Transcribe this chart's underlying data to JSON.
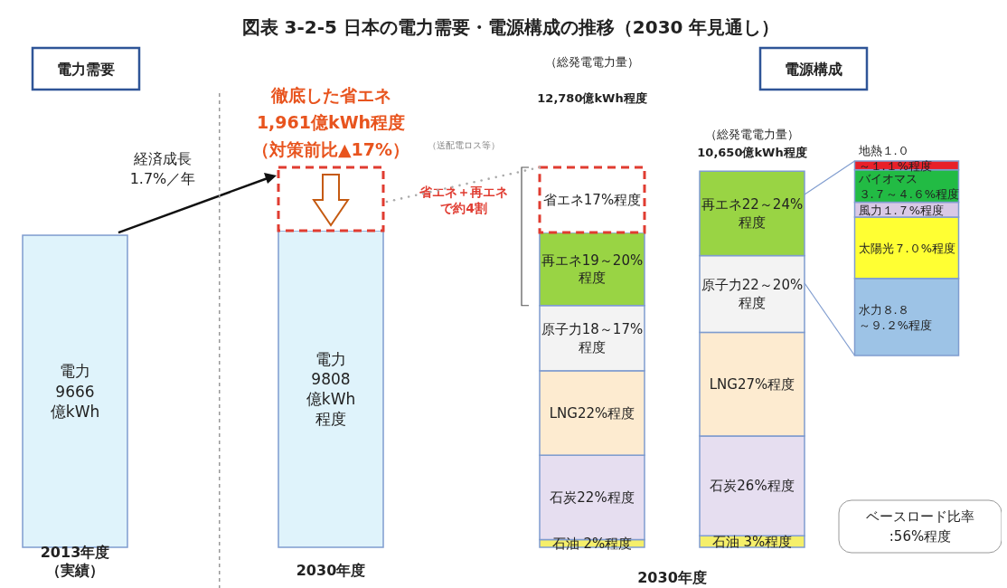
{
  "chart_data": [
    {
      "type": "bar",
      "stacked": true,
      "title": "図表 3-2-5 日本の電力需要・電源構成の推移（2030 年見通し）",
      "categories": [
        "2013年度（実績）",
        "2030年度"
      ],
      "series": [
        {
          "color": "#dff3fb",
          "values": [
            9666,
            9808
          ],
          "value_labels": [
            "電力\n9666\n億kWh",
            "電力\n9808\n億kWh\n程度"
          ]
        },
        {
          "color": "#ffffff",
          "line_style": "dashed",
          "values": [
            null,
            1961
          ],
          "value_labels": [
            null,
            "徹底した省エネ1,961億kWh程度（対策前比▲17%）"
          ]
        }
      ],
      "annotations": [
        "電力需要",
        "経済成長\n1.7%／年"
      ]
    },
    {
      "type": "bar",
      "stacked": true,
      "categories": [
        null,
        null
      ],
      "xlabel": "2030年度",
      "series": [
        {
          "color": "#f5ef6a",
          "values": [
            2,
            3
          ],
          "value_labels": [
            "石油 2%程度",
            "石油 3%程度"
          ]
        },
        {
          "color": "#e6def0",
          "values": [
            22,
            26
          ],
          "value_labels": [
            "石炭22%程度",
            "石炭26%程度"
          ]
        },
        {
          "color": "#fdebd0",
          "values": [
            22,
            27
          ],
          "value_labels": [
            "LNG22%程度",
            "LNG27%程度"
          ]
        },
        {
          "color": "#f3f3f3",
          "values": [
            17,
            20
          ],
          "value_labels": [
            "原子力18～17%\n程度",
            "原子力22～20%\n程度"
          ]
        },
        {
          "color": "#99d444",
          "values": [
            19,
            22
          ],
          "value_labels": [
            "再エネ19～20%\n程度",
            "再エネ22～24%\n程度"
          ]
        },
        {
          "color": "#ffffff",
          "line_style": "dashed",
          "values": [
            17,
            null
          ],
          "value_labels": [
            "省エネ17%程度",
            null
          ]
        }
      ],
      "annotations": [
        "（総発電電力量）",
        "12,780億kWh程度",
        "（総発電電力量）",
        "10,650億kWh程度",
        "（送配電ロス等）",
        "省エネ＋再エネで約4割"
      ]
    },
    {
      "type": "bar",
      "stacked": true,
      "categories": [
        null
      ],
      "series": [
        {
          "color": "#9dc3e6",
          "values": [
            8.8
          ],
          "value_labels": [
            "水力８.８～９.２%程度"
          ]
        },
        {
          "color": "#ffff33",
          "values": [
            7.0
          ],
          "value_labels": [
            "太陽光７.０%程度"
          ]
        },
        {
          "color": "#d9c9e6",
          "values": [
            1.7
          ],
          "value_labels": [
            "風力１.７%程度"
          ]
        },
        {
          "color": "#22bb44",
          "values": [
            3.7
          ],
          "value_labels": [
            "バイオマス３.７～４.６%程度"
          ]
        },
        {
          "color": "#e8202a",
          "values": [
            1.0
          ],
          "value_labels": [
            "地熱１.０～１.１%程度"
          ]
        }
      ],
      "annotations": [
        "電源構成",
        "ベースロード比率\n:56%程度"
      ]
    }
  ]
}
